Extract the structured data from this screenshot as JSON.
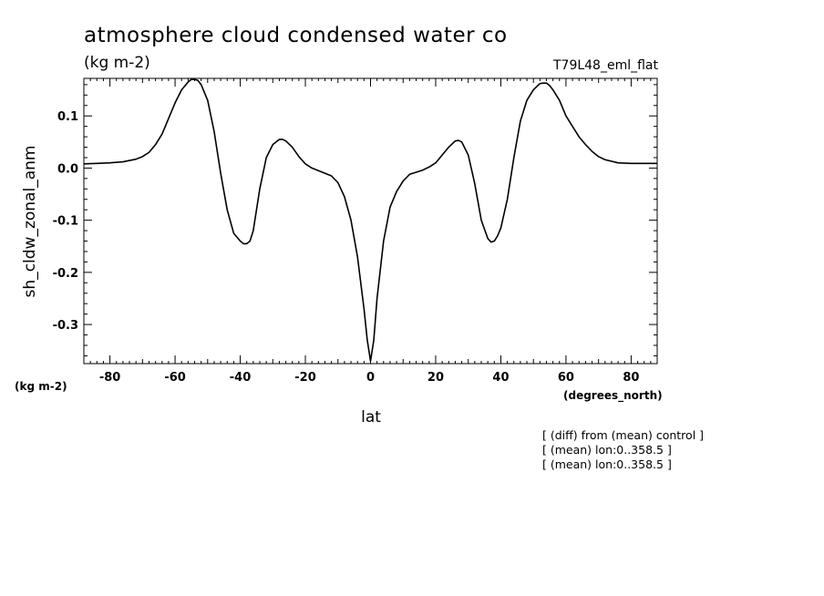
{
  "chart_data": {
    "type": "line",
    "title": "atmosphere cloud condensed water co",
    "subtitle": "(kg m-2)",
    "case_label": "T79L48_eml_flat",
    "ylabel": "sh_cldw_zonal_anm",
    "y_unit": "(kg m-2)",
    "xlabel": "lat",
    "x_unit": "(degrees_north)",
    "xlim": [
      -88,
      88
    ],
    "ylim": [
      -0.375,
      0.172
    ],
    "x_ticks": [
      -80,
      -60,
      -40,
      -20,
      0,
      20,
      40,
      60,
      80
    ],
    "x_tick_labels": [
      "-80",
      "-60",
      "-40",
      "-20",
      "0",
      "20",
      "40",
      "60",
      "80"
    ],
    "y_ticks": [
      0.1,
      0.0,
      -0.1,
      -0.2,
      -0.3
    ],
    "y_tick_labels": [
      "0.1",
      "0.0",
      "-0.1",
      "-0.2",
      "-0.3"
    ],
    "grid": false,
    "series": [
      {
        "color": "#000000",
        "x": [
          -88,
          -84,
          -80,
          -76,
          -72,
          -70,
          -68,
          -66,
          -64,
          -62,
          -60,
          -58,
          -56,
          -55,
          -54,
          -53,
          -52,
          -50,
          -48,
          -46,
          -44,
          -42,
          -40,
          -39,
          -38,
          -37,
          -36,
          -34,
          -32,
          -30,
          -28,
          -27,
          -26,
          -24,
          -22,
          -20,
          -18,
          -16,
          -14,
          -12,
          -10,
          -8,
          -6,
          -4,
          -2,
          -1,
          0,
          1,
          2,
          4,
          6,
          8,
          10,
          12,
          14,
          16,
          18,
          20,
          22,
          24,
          26,
          27,
          28,
          30,
          32,
          34,
          36,
          37,
          38,
          39,
          40,
          42,
          44,
          46,
          48,
          50,
          52,
          53,
          54,
          55,
          56,
          58,
          60,
          62,
          64,
          66,
          68,
          70,
          72,
          76,
          80,
          84,
          88
        ],
        "y": [
          0.008,
          0.009,
          0.01,
          0.012,
          0.017,
          0.022,
          0.03,
          0.045,
          0.065,
          0.095,
          0.125,
          0.15,
          0.165,
          0.17,
          0.17,
          0.168,
          0.16,
          0.13,
          0.07,
          -0.01,
          -0.08,
          -0.125,
          -0.14,
          -0.145,
          -0.145,
          -0.14,
          -0.12,
          -0.04,
          0.02,
          0.045,
          0.055,
          0.055,
          0.052,
          0.04,
          0.022,
          0.008,
          0.0,
          -0.005,
          -0.01,
          -0.015,
          -0.028,
          -0.055,
          -0.1,
          -0.17,
          -0.27,
          -0.33,
          -0.37,
          -0.33,
          -0.25,
          -0.14,
          -0.075,
          -0.045,
          -0.025,
          -0.012,
          -0.008,
          -0.004,
          0.002,
          0.01,
          0.025,
          0.04,
          0.052,
          0.053,
          0.05,
          0.025,
          -0.03,
          -0.1,
          -0.135,
          -0.142,
          -0.14,
          -0.13,
          -0.115,
          -0.06,
          0.02,
          0.09,
          0.13,
          0.15,
          0.162,
          0.163,
          0.163,
          0.158,
          0.15,
          0.13,
          0.1,
          0.08,
          0.06,
          0.045,
          0.032,
          0.022,
          0.016,
          0.01,
          0.009,
          0.009,
          0.009
        ]
      }
    ]
  },
  "notes": [
    "[ (diff) from (mean) control ]",
    "[ (mean) lon:0..358.5 ]",
    "[ (mean) lon:0..358.5 ]"
  ]
}
